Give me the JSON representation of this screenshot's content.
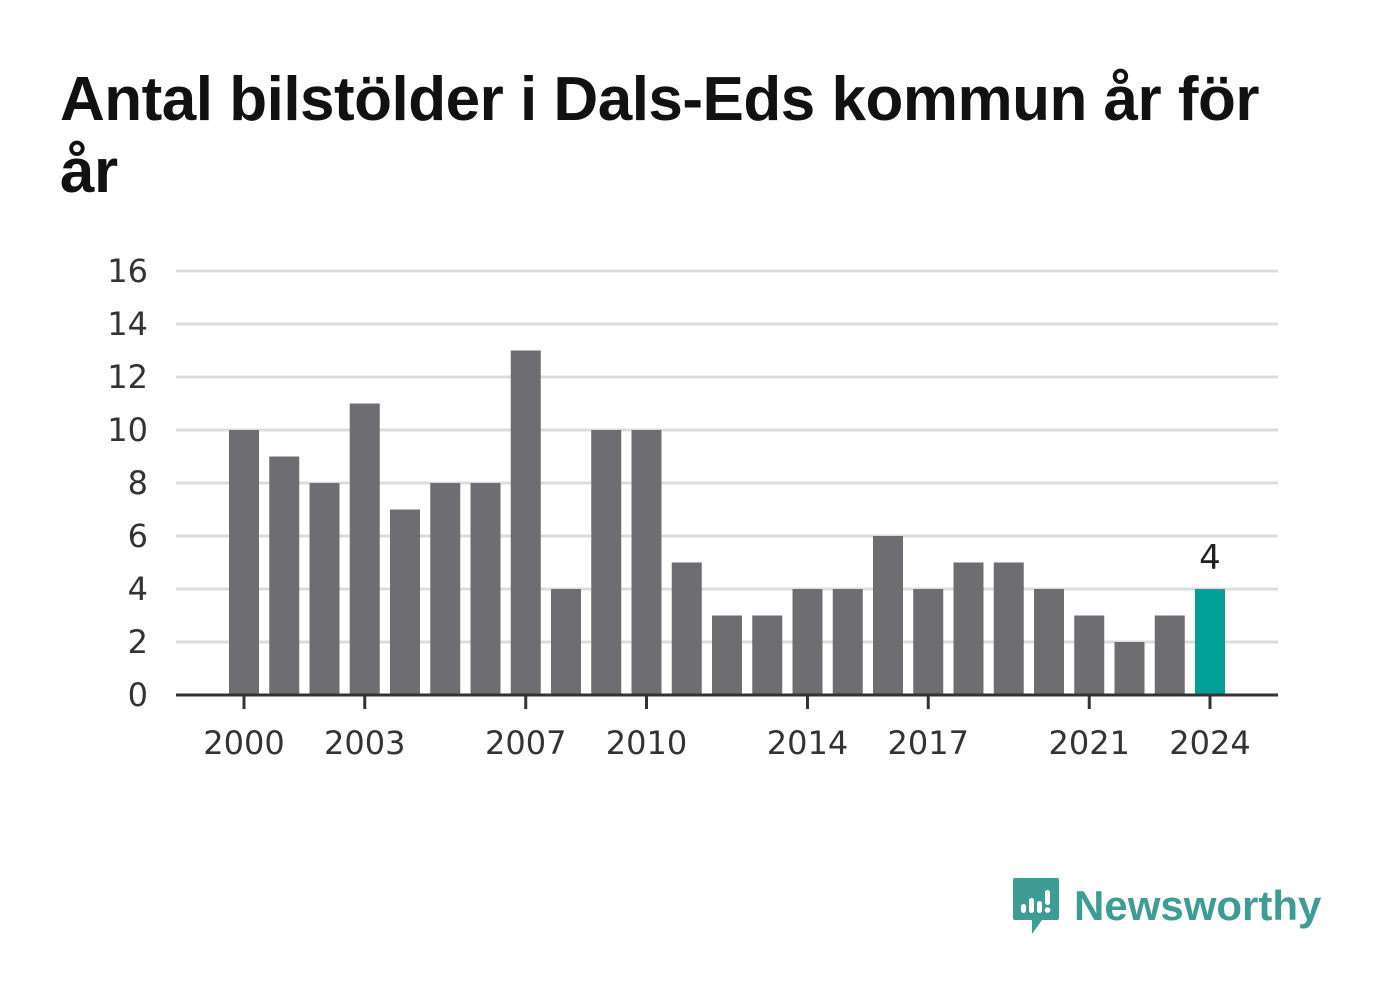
{
  "title": "Antal bilstölder i Dals-Eds kommun år för år",
  "brand": {
    "name": "Newsworthy",
    "logo_icon": "newsworthy-logo-icon"
  },
  "colors": {
    "bar": "#6e6d72",
    "highlight": "#00a096",
    "grid": "#dcdcdc",
    "axis": "#333333",
    "brand": "#3e9c94"
  },
  "chart_data": {
    "type": "bar",
    "title": "Antal bilstölder i Dals-Eds kommun år för år",
    "categories": [
      "2000",
      "2001",
      "2002",
      "2003",
      "2004",
      "2005",
      "2006",
      "2007",
      "2008",
      "2009",
      "2010",
      "2011",
      "2012",
      "2013",
      "2014",
      "2015",
      "2016",
      "2017",
      "2018",
      "2019",
      "2020",
      "2021",
      "2022",
      "2023",
      "2024"
    ],
    "values": [
      10,
      9,
      8,
      11,
      7,
      8,
      8,
      13,
      4,
      10,
      10,
      5,
      3,
      3,
      4,
      4,
      6,
      4,
      5,
      5,
      4,
      3,
      2,
      3,
      4
    ],
    "highlight": "2024",
    "highlight_label": "4",
    "x_tick_labels": [
      "2000",
      "2003",
      "2007",
      "2010",
      "2014",
      "2017",
      "2021",
      "2024"
    ],
    "y_ticks": [
      0,
      2,
      4,
      6,
      8,
      10,
      12,
      14,
      16
    ],
    "ylim": [
      0,
      16
    ],
    "grid": true,
    "xlabel": "",
    "ylabel": ""
  }
}
